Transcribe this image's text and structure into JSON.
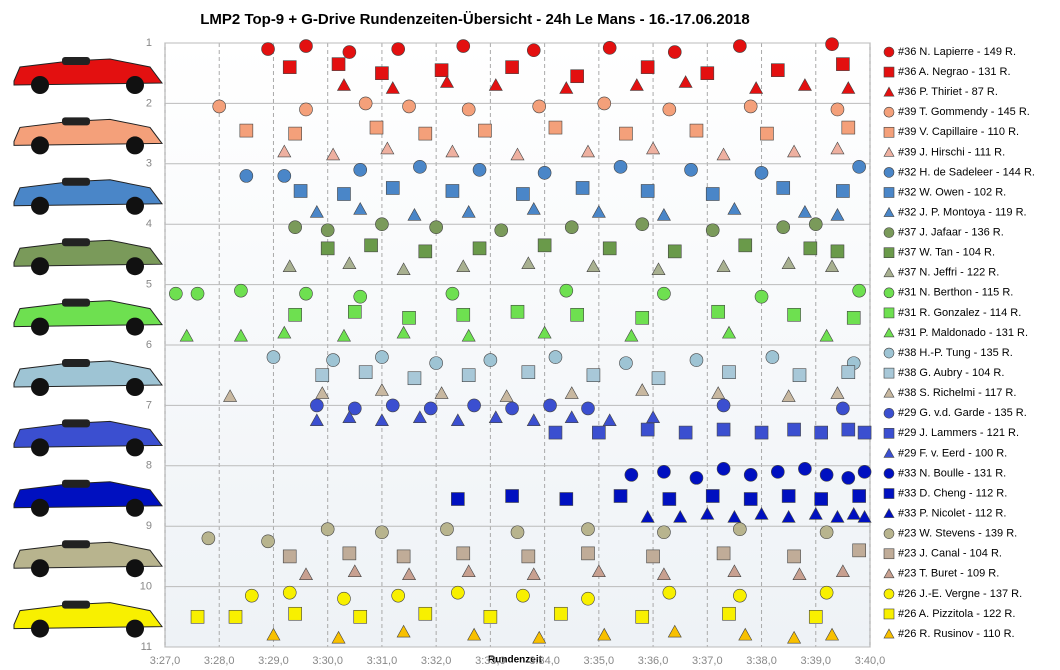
{
  "chart_data": {
    "type": "scatter",
    "title": "LMP2  Top-9 + G-Drive Rundenzeiten-Übersicht  - 24h Le Mans  - 16.-17.06.2018",
    "x_label": "Rundenzeit",
    "xlim": [
      207,
      220
    ],
    "ylim": [
      1,
      11
    ],
    "y_reversed": true,
    "grid": true,
    "xticks": [
      {
        "value": 207,
        "label": "3:27,0"
      },
      {
        "value": 208,
        "label": "3:28,0"
      },
      {
        "value": 209,
        "label": "3:29,0"
      },
      {
        "value": 210,
        "label": "3:30,0"
      },
      {
        "value": 211,
        "label": "3:31,0"
      },
      {
        "value": 212,
        "label": "3:32,0"
      },
      {
        "value": 213,
        "label": "3:33,0"
      },
      {
        "value": 214,
        "label": "3:34,0"
      },
      {
        "value": 215,
        "label": "3:35,0"
      },
      {
        "value": 216,
        "label": "3:36,0"
      },
      {
        "value": 217,
        "label": "3:37,0"
      },
      {
        "value": 218,
        "label": "3:38,0"
      },
      {
        "value": 219,
        "label": "3:39,0"
      },
      {
        "value": 220,
        "label": "3:40,0"
      }
    ],
    "yticks": [
      1,
      2,
      3,
      4,
      5,
      6,
      7,
      8,
      9,
      10,
      11
    ],
    "series": [
      {
        "name": "#36 N. Lapierre - 149 R.",
        "color": "#e31010",
        "marker": "circle",
        "x": [
          208.9,
          209.6,
          210.4,
          211.3,
          212.5,
          213.8,
          215.2,
          216.4,
          217.6,
          219.3
        ],
        "y": [
          1.1,
          1.05,
          1.15,
          1.1,
          1.05,
          1.12,
          1.08,
          1.15,
          1.05,
          1.02
        ]
      },
      {
        "name": "#36 A. Negrao - 131 R.",
        "color": "#e31010",
        "marker": "square",
        "x": [
          209.3,
          210.2,
          211.0,
          212.1,
          213.4,
          214.6,
          215.9,
          217.0,
          218.3,
          219.5
        ],
        "y": [
          1.4,
          1.35,
          1.5,
          1.45,
          1.4,
          1.55,
          1.4,
          1.5,
          1.45,
          1.35
        ]
      },
      {
        "name": "#36 P. Thiriet - 87 R.",
        "color": "#e31010",
        "marker": "triangle",
        "x": [
          210.3,
          211.2,
          212.2,
          213.1,
          214.4,
          215.7,
          216.6,
          217.9,
          218.8,
          219.6
        ],
        "y": [
          1.7,
          1.75,
          1.65,
          1.7,
          1.75,
          1.7,
          1.65,
          1.75,
          1.7,
          1.75
        ]
      },
      {
        "name": "#39 T. Gommendy - 145 R.",
        "color": "#f4a07a",
        "marker": "circle",
        "x": [
          208.0,
          209.6,
          210.7,
          211.5,
          212.6,
          213.9,
          215.1,
          216.3,
          217.8,
          219.4
        ],
        "y": [
          2.05,
          2.1,
          2.0,
          2.05,
          2.1,
          2.05,
          2.0,
          2.1,
          2.05,
          2.1
        ]
      },
      {
        "name": "#39 V. Capillaire - 110 R.",
        "color": "#f4a07a",
        "marker": "square",
        "x": [
          208.5,
          209.4,
          210.9,
          211.8,
          212.9,
          214.2,
          215.5,
          216.8,
          218.1,
          219.6
        ],
        "y": [
          2.45,
          2.5,
          2.4,
          2.5,
          2.45,
          2.4,
          2.5,
          2.45,
          2.5,
          2.4
        ]
      },
      {
        "name": "#39 J. Hirschi - 111 R.",
        "color": "#eeb0a0",
        "marker": "triangle",
        "x": [
          209.2,
          210.1,
          211.1,
          212.3,
          213.5,
          214.8,
          216.0,
          217.3,
          218.6,
          219.4
        ],
        "y": [
          2.8,
          2.85,
          2.75,
          2.8,
          2.85,
          2.8,
          2.75,
          2.85,
          2.8,
          2.75
        ]
      },
      {
        "name": "#32 H. de Sadeleer - 144 R.",
        "color": "#4a86c8",
        "marker": "circle",
        "x": [
          208.5,
          209.2,
          210.6,
          211.7,
          212.8,
          214.0,
          215.4,
          216.7,
          218.0,
          219.8
        ],
        "y": [
          3.2,
          3.2,
          3.1,
          3.05,
          3.1,
          3.15,
          3.05,
          3.1,
          3.15,
          3.05
        ]
      },
      {
        "name": "#32 W. Owen - 102 R.",
        "color": "#4a86c8",
        "marker": "square",
        "x": [
          209.5,
          210.3,
          211.2,
          212.3,
          213.6,
          214.7,
          215.9,
          217.1,
          218.4,
          219.5
        ],
        "y": [
          3.45,
          3.5,
          3.4,
          3.45,
          3.5,
          3.4,
          3.45,
          3.5,
          3.4,
          3.45
        ]
      },
      {
        "name": "#32 J. P. Montoya - 119 R.",
        "color": "#4a86c8",
        "marker": "triangle",
        "x": [
          209.8,
          210.6,
          211.6,
          212.6,
          213.8,
          215.0,
          216.2,
          217.5,
          218.8,
          219.4
        ],
        "y": [
          3.8,
          3.75,
          3.85,
          3.8,
          3.75,
          3.8,
          3.85,
          3.75,
          3.8,
          3.85
        ]
      },
      {
        "name": "#37 J. Jafaar - 136 R.",
        "color": "#7a9a5a",
        "marker": "circle",
        "x": [
          209.4,
          210.0,
          211.0,
          212.0,
          213.2,
          214.5,
          215.8,
          217.1,
          218.4,
          219.0
        ],
        "y": [
          4.05,
          4.1,
          4.0,
          4.05,
          4.1,
          4.05,
          4.0,
          4.1,
          4.05,
          4.0
        ]
      },
      {
        "name": "#37 W. Tan - 104 R.",
        "color": "#6a9a4a",
        "marker": "square",
        "x": [
          210.0,
          210.8,
          211.8,
          212.8,
          214.0,
          215.2,
          216.4,
          217.7,
          218.9,
          219.4
        ],
        "y": [
          4.4,
          4.35,
          4.45,
          4.4,
          4.35,
          4.4,
          4.45,
          4.35,
          4.4,
          4.45
        ]
      },
      {
        "name": "#37 N. Jeffri - 122 R.",
        "color": "#a8b090",
        "marker": "triangle",
        "x": [
          209.3,
          210.4,
          211.4,
          212.5,
          213.7,
          214.9,
          216.1,
          217.3,
          218.5,
          219.3
        ],
        "y": [
          4.7,
          4.65,
          4.75,
          4.7,
          4.65,
          4.7,
          4.75,
          4.7,
          4.65,
          4.7
        ]
      },
      {
        "name": "#31 N. Berthon - 115 R.",
        "color": "#6ee050",
        "marker": "circle",
        "x": [
          207.2,
          207.6,
          208.4,
          209.6,
          210.6,
          212.3,
          214.4,
          216.2,
          218.0,
          219.8
        ],
        "y": [
          5.15,
          5.15,
          5.1,
          5.15,
          5.2,
          5.15,
          5.1,
          5.15,
          5.2,
          5.1
        ]
      },
      {
        "name": "#31 R. Gonzalez - 114 R.",
        "color": "#6ee050",
        "marker": "square",
        "x": [
          209.4,
          210.5,
          211.5,
          212.5,
          213.5,
          214.6,
          215.8,
          217.2,
          218.6,
          219.7
        ],
        "y": [
          5.5,
          5.45,
          5.55,
          5.5,
          5.45,
          5.5,
          5.55,
          5.45,
          5.5,
          5.55
        ]
      },
      {
        "name": "#31 P. Maldonado - 131 R.",
        "color": "#6ee050",
        "marker": "triangle",
        "x": [
          207.4,
          208.4,
          209.2,
          210.3,
          211.4,
          212.6,
          214.0,
          215.6,
          217.4,
          219.2
        ],
        "y": [
          5.85,
          5.85,
          5.8,
          5.85,
          5.8,
          5.85,
          5.8,
          5.85,
          5.8,
          5.85
        ]
      },
      {
        "name": "#38 H.-P. Tung - 135 R.",
        "color": "#9ec4d4",
        "marker": "circle",
        "x": [
          209.0,
          210.1,
          211.0,
          212.0,
          213.0,
          214.2,
          215.5,
          216.8,
          218.2,
          219.7
        ],
        "y": [
          6.2,
          6.25,
          6.2,
          6.3,
          6.25,
          6.2,
          6.3,
          6.25,
          6.2,
          6.3
        ]
      },
      {
        "name": "#38 G. Aubry - 104 R.",
        "color": "#a8c8d8",
        "marker": "square",
        "x": [
          209.9,
          210.7,
          211.6,
          212.6,
          213.7,
          214.9,
          216.1,
          217.4,
          218.7,
          219.6
        ],
        "y": [
          6.5,
          6.45,
          6.55,
          6.5,
          6.45,
          6.5,
          6.55,
          6.45,
          6.5,
          6.45
        ]
      },
      {
        "name": "#38 S. Richelmi - 117 R.",
        "color": "#c8b8a0",
        "marker": "triangle",
        "x": [
          208.2,
          209.9,
          211.0,
          212.1,
          213.3,
          214.5,
          215.8,
          217.2,
          218.5,
          219.4
        ],
        "y": [
          6.85,
          6.8,
          6.75,
          6.8,
          6.85,
          6.8,
          6.75,
          6.8,
          6.85,
          6.8
        ]
      },
      {
        "name": "#29 G. v.d. Garde - 135 R.",
        "color": "#3b4fd0",
        "marker": "circle",
        "x": [
          209.8,
          210.5,
          211.2,
          211.9,
          212.7,
          213.4,
          214.1,
          214.8,
          217.3,
          219.5
        ],
        "y": [
          7.0,
          7.05,
          7.0,
          7.05,
          7.0,
          7.05,
          7.0,
          7.05,
          7.0,
          7.05
        ]
      },
      {
        "name": "#29 J. Lammers - 121 R.",
        "color": "#3b4fd0",
        "marker": "square",
        "x": [
          214.2,
          215.0,
          215.9,
          216.6,
          217.3,
          218.0,
          218.6,
          219.1,
          219.6,
          219.9
        ],
        "y": [
          7.45,
          7.45,
          7.4,
          7.45,
          7.4,
          7.45,
          7.4,
          7.45,
          7.4,
          7.45
        ]
      },
      {
        "name": "#29 F. v. Eerd - 100 R.",
        "color": "#3b4fd0",
        "marker": "triangle",
        "x": [
          209.8,
          210.4,
          211.0,
          211.7,
          212.4,
          213.1,
          213.8,
          214.5,
          215.2,
          216.0
        ],
        "y": [
          7.25,
          7.2,
          7.25,
          7.2,
          7.25,
          7.2,
          7.25,
          7.2,
          7.25,
          7.2
        ]
      },
      {
        "name": "#33 N. Boulle - 131 R.",
        "color": "#0010c0",
        "marker": "circle",
        "x": [
          215.6,
          216.2,
          216.8,
          217.3,
          217.8,
          218.3,
          218.8,
          219.2,
          219.6,
          219.9
        ],
        "y": [
          8.15,
          8.1,
          8.2,
          8.05,
          8.15,
          8.1,
          8.05,
          8.15,
          8.2,
          8.1
        ]
      },
      {
        "name": "#33 D. Cheng - 112 R.",
        "color": "#0010c0",
        "marker": "square",
        "x": [
          212.4,
          213.4,
          214.4,
          215.4,
          216.3,
          217.1,
          217.8,
          218.5,
          219.1,
          219.8
        ],
        "y": [
          8.55,
          8.5,
          8.55,
          8.5,
          8.55,
          8.5,
          8.55,
          8.5,
          8.55,
          8.5
        ]
      },
      {
        "name": "#33 P. Nicolet - 112 R.",
        "color": "#0010c0",
        "marker": "triangle",
        "x": [
          215.9,
          216.5,
          217.0,
          217.5,
          218.0,
          218.5,
          219.0,
          219.4,
          219.7,
          219.9
        ],
        "y": [
          8.85,
          8.85,
          8.8,
          8.85,
          8.8,
          8.85,
          8.8,
          8.85,
          8.8,
          8.85
        ]
      },
      {
        "name": "#23 W. Stevens - 139 R.",
        "color": "#b8b48e",
        "marker": "circle",
        "x": [
          207.8,
          208.9,
          210.0,
          211.0,
          212.2,
          213.5,
          214.8,
          216.2,
          217.6,
          219.2
        ],
        "y": [
          9.2,
          9.25,
          9.05,
          9.1,
          9.05,
          9.1,
          9.05,
          9.1,
          9.05,
          9.1
        ]
      },
      {
        "name": "#23 J. Canal - 104 R.",
        "color": "#c0ac98",
        "marker": "square",
        "x": [
          209.3,
          210.4,
          211.4,
          212.5,
          213.7,
          214.8,
          216.0,
          217.3,
          218.6,
          219.8
        ],
        "y": [
          9.5,
          9.45,
          9.5,
          9.45,
          9.5,
          9.45,
          9.5,
          9.45,
          9.5,
          9.4
        ]
      },
      {
        "name": "#23 T. Buret - 109 R.",
        "color": "#c8a090",
        "marker": "triangle",
        "x": [
          209.6,
          210.5,
          211.5,
          212.6,
          213.8,
          215.0,
          216.2,
          217.5,
          218.7,
          219.5
        ],
        "y": [
          9.8,
          9.75,
          9.8,
          9.75,
          9.8,
          9.75,
          9.8,
          9.75,
          9.8,
          9.75
        ]
      },
      {
        "name": "#26 J.-E. Vergne - 137 R.",
        "color": "#f8f000",
        "marker": "circle",
        "x": [
          208.6,
          209.3,
          210.3,
          211.3,
          212.4,
          213.6,
          214.8,
          216.3,
          217.6,
          219.2
        ],
        "y": [
          10.15,
          10.1,
          10.2,
          10.15,
          10.1,
          10.15,
          10.2,
          10.1,
          10.15,
          10.1
        ]
      },
      {
        "name": "#26 A. Pizzitola - 122 R.",
        "color": "#f8f000",
        "marker": "square",
        "x": [
          207.6,
          208.3,
          209.4,
          210.6,
          211.8,
          213.0,
          214.3,
          215.8,
          217.4,
          219.0
        ],
        "y": [
          10.5,
          10.5,
          10.45,
          10.5,
          10.45,
          10.5,
          10.45,
          10.5,
          10.45,
          10.5
        ]
      },
      {
        "name": "#26 R. Rusinov - 110 R.",
        "color": "#f8c000",
        "marker": "triangle",
        "x": [
          209.0,
          210.2,
          211.4,
          212.7,
          213.9,
          215.1,
          216.4,
          217.7,
          218.6,
          219.3
        ],
        "y": [
          10.8,
          10.85,
          10.75,
          10.8,
          10.85,
          10.8,
          10.75,
          10.8,
          10.85,
          10.8
        ]
      }
    ]
  }
}
